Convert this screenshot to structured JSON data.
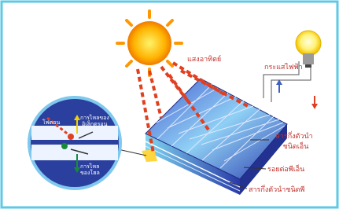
{
  "labels": {
    "sunlight": "แสงอาทิตย์",
    "current": "กระแสไฟฟ้า",
    "n_type": [
      "สารกึ่งตัวนำ",
      "ชนิดเอ็น"
    ],
    "junction": "รอยต่อพีเอ็น",
    "p_type": "สารกึ่งตัวนำชนิดพี",
    "photon": "โฟตอน",
    "electron_flow": [
      "การไหลของ",
      "อิเล็กตรอน"
    ],
    "hole_flow": [
      "การไหล",
      "ของโฮล"
    ]
  }
}
